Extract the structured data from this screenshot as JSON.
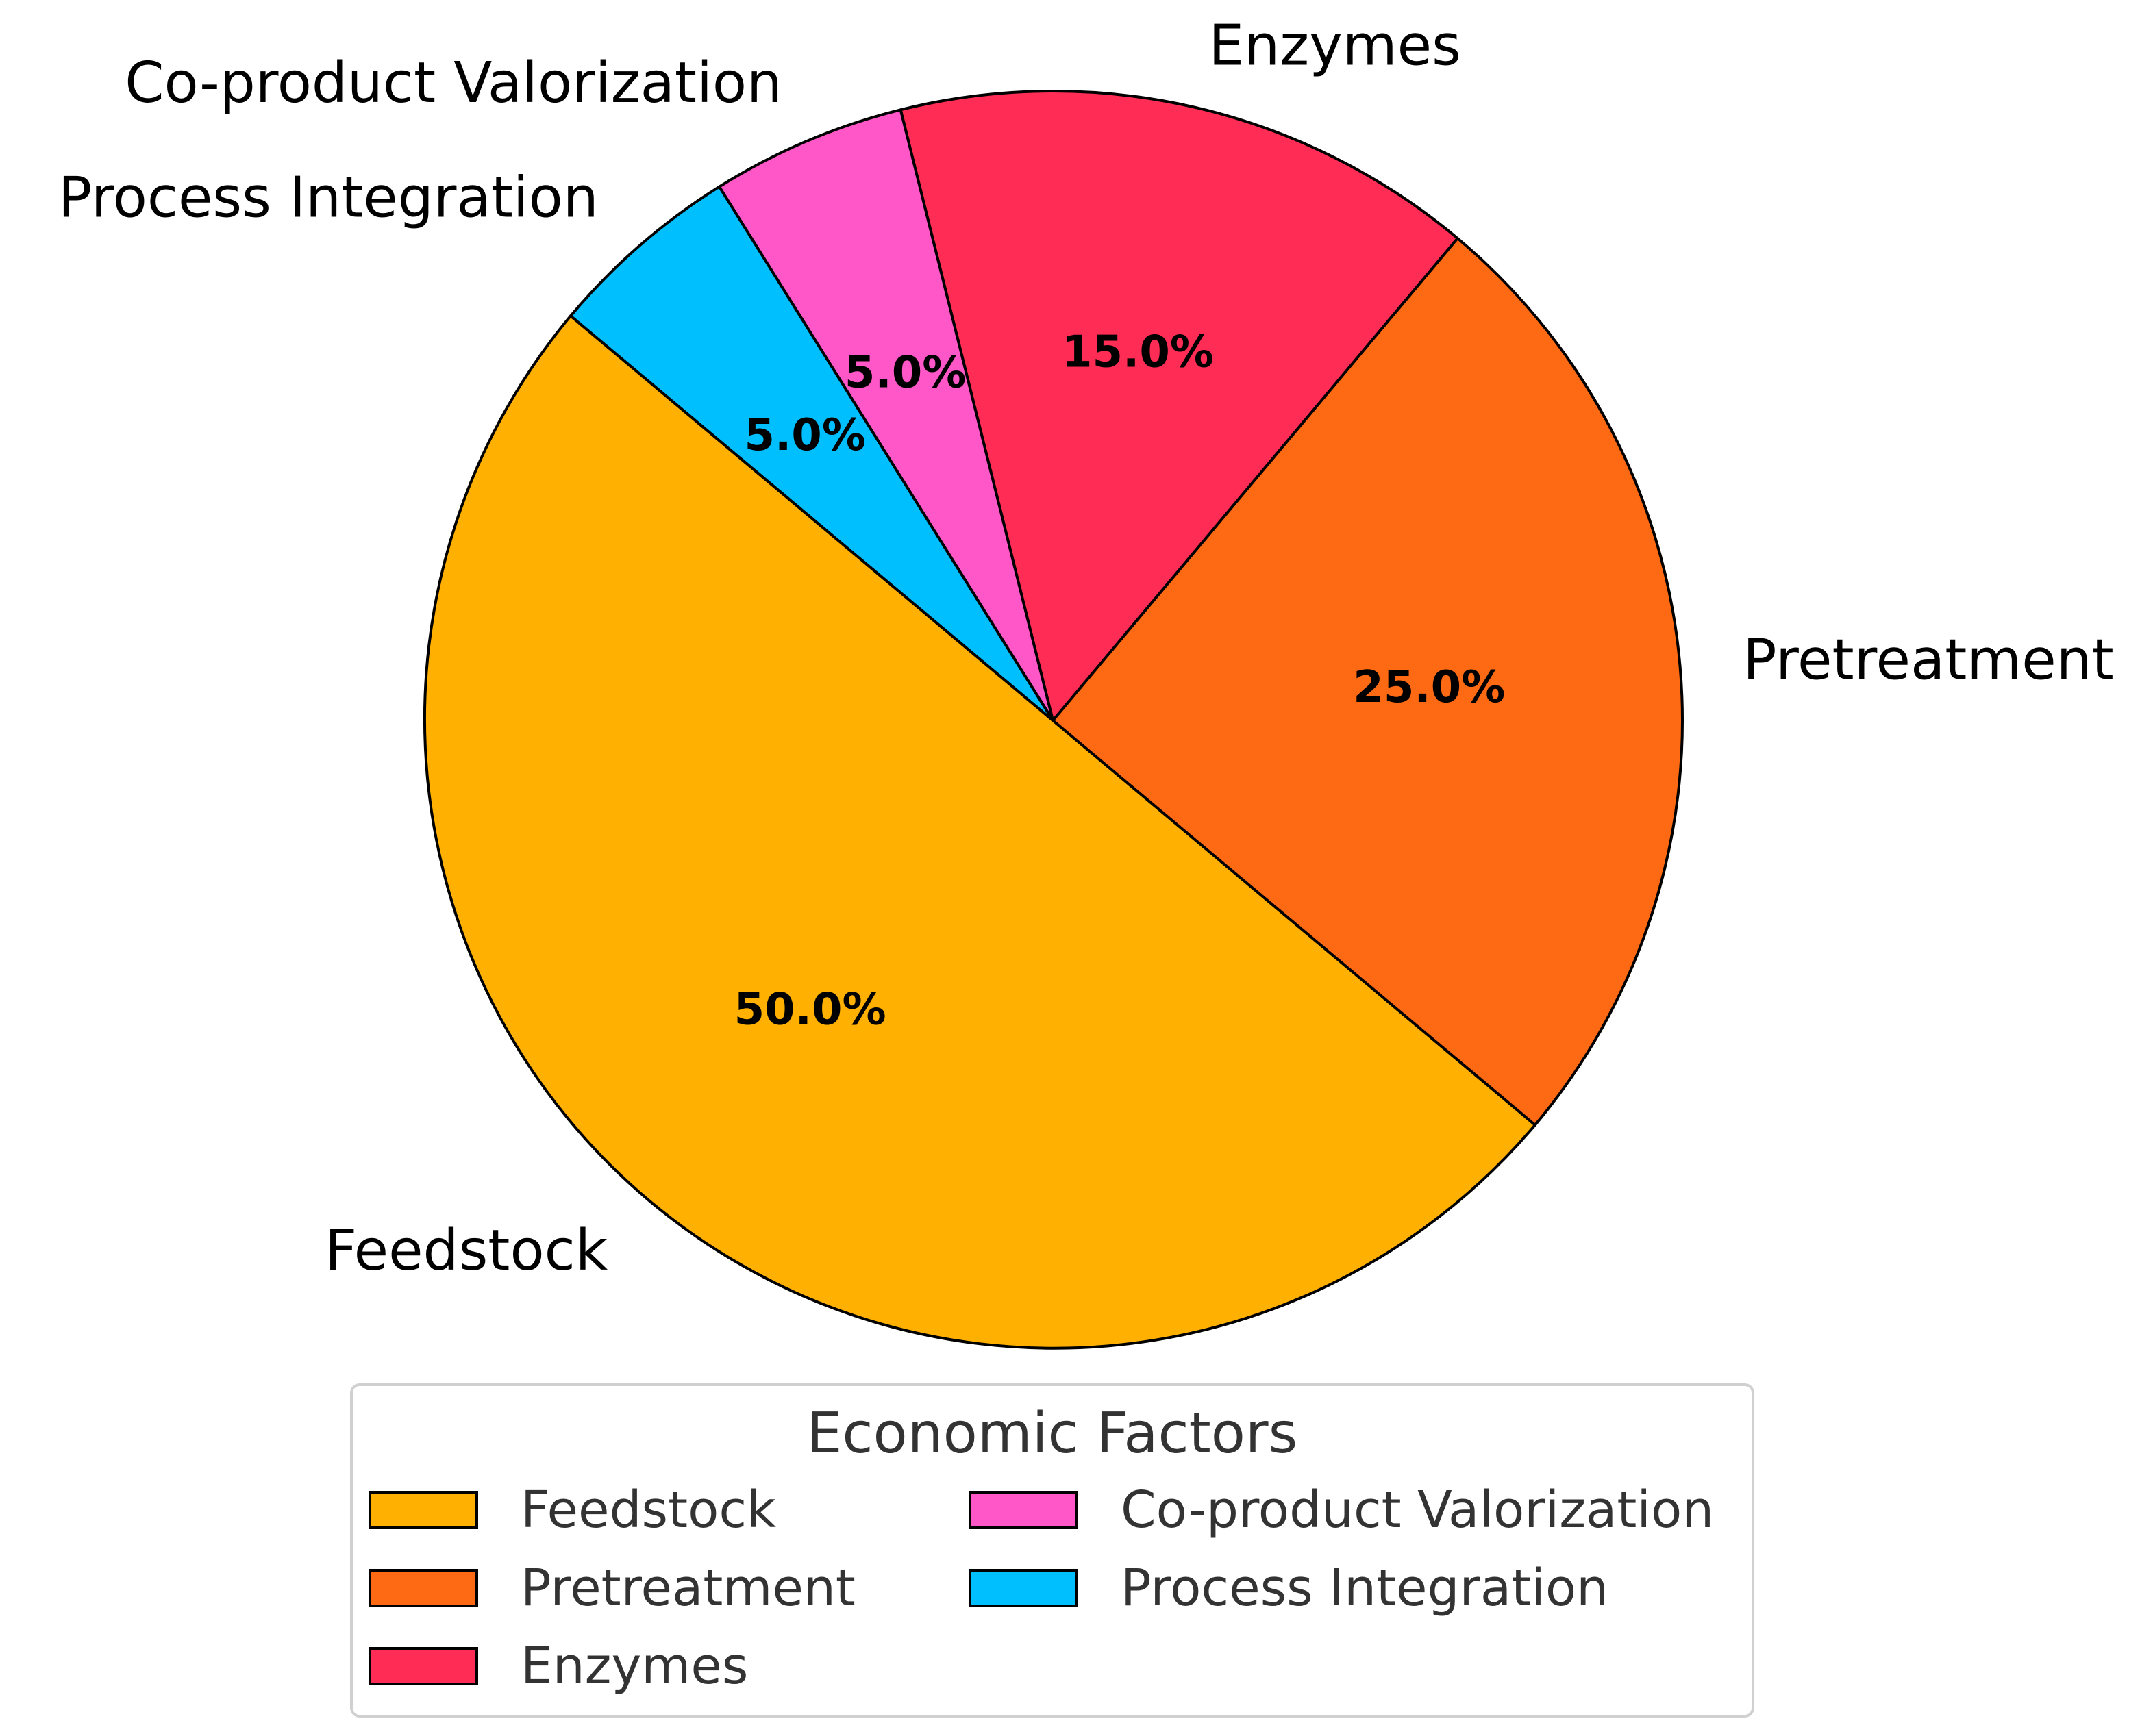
{
  "chart_data": {
    "type": "pie",
    "title": "",
    "start_angle_deg": 140,
    "direction": "counterclockwise",
    "slices": [
      {
        "label": "Feedstock",
        "value": 50.0,
        "pct_label": "50.0%",
        "color": "#FFB000"
      },
      {
        "label": "Pretreatment",
        "value": 25.0,
        "pct_label": "25.0%",
        "color": "#FE6A13"
      },
      {
        "label": "Enzymes",
        "value": 15.0,
        "pct_label": "15.0%",
        "color": "#FF2D55"
      },
      {
        "label": "Co-product Valorization",
        "value": 5.0,
        "pct_label": "5.0%",
        "color": "#FF57C8"
      },
      {
        "label": "Process Integration",
        "value": 5.0,
        "pct_label": "5.0%",
        "color": "#00BFFF"
      }
    ],
    "legend": {
      "title": "Economic Factors",
      "location": "bottom-center",
      "columns": 2
    }
  }
}
